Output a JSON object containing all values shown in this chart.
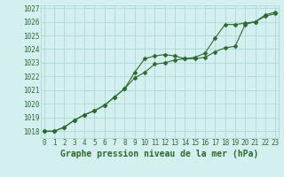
{
  "title": "Graphe pression niveau de la mer (hPa)",
  "x_ticks": [
    0,
    1,
    2,
    3,
    4,
    5,
    6,
    7,
    8,
    9,
    10,
    11,
    12,
    13,
    14,
    15,
    16,
    17,
    18,
    19,
    20,
    21,
    22,
    23
  ],
  "xlim": [
    -0.3,
    23.3
  ],
  "ylim": [
    1017.5,
    1027.2
  ],
  "y_ticks": [
    1018,
    1019,
    1020,
    1021,
    1022,
    1023,
    1024,
    1025,
    1026,
    1027
  ],
  "line1_x": [
    0,
    1,
    2,
    3,
    4,
    5,
    6,
    7,
    8,
    9,
    10,
    11,
    12,
    13,
    14,
    15,
    16,
    17,
    18,
    19,
    20,
    21,
    22,
    23
  ],
  "line1_y": [
    1018.0,
    1018.0,
    1018.3,
    1018.8,
    1019.2,
    1019.5,
    1019.9,
    1020.5,
    1021.1,
    1021.9,
    1022.3,
    1022.9,
    1023.0,
    1023.2,
    1023.3,
    1023.3,
    1023.4,
    1023.8,
    1024.1,
    1024.2,
    1025.8,
    1026.0,
    1026.4,
    1026.6
  ],
  "line2_x": [
    0,
    1,
    2,
    3,
    4,
    5,
    6,
    7,
    8,
    9,
    10,
    11,
    12,
    13,
    14,
    15,
    16,
    17,
    18,
    19,
    20,
    21,
    22,
    23
  ],
  "line2_y": [
    1018.0,
    1018.0,
    1018.3,
    1018.8,
    1019.2,
    1019.5,
    1019.9,
    1020.5,
    1021.1,
    1022.3,
    1023.3,
    1023.5,
    1023.6,
    1023.5,
    1023.3,
    1023.4,
    1023.7,
    1024.8,
    1025.8,
    1025.8,
    1025.9,
    1026.0,
    1026.5,
    1026.7
  ],
  "line_color": "#2d6a2d",
  "bg_color": "#d4efef",
  "grid_color": "#afd8d8",
  "marker": "D",
  "marker_size": 2.5,
  "title_color": "#2d6a2d",
  "title_fontsize": 7,
  "tick_fontsize": 5.5,
  "ylabel_fontsize": 5.5
}
